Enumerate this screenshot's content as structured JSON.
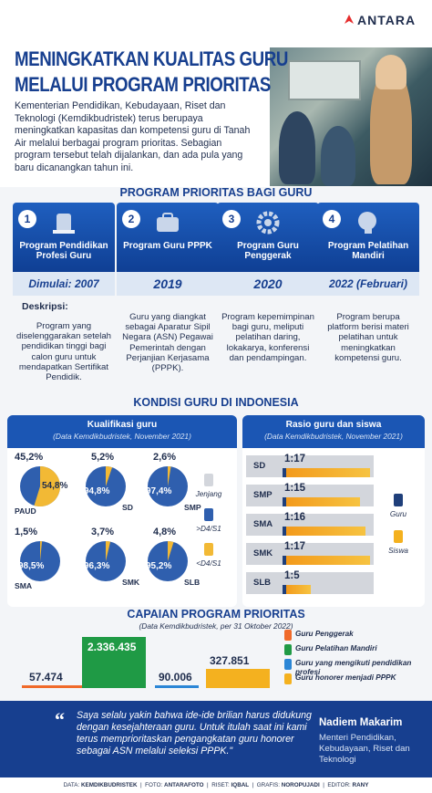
{
  "brand": {
    "logo_text": "ANTARA"
  },
  "title": {
    "line1": "MENINGKATKAN KUALITAS GURU",
    "line2": "MELALUI PROGRAM PRIORITAS"
  },
  "intro": "Kementerian Pendidikan, Kebudayaan, Riset dan Teknologi (Kemdikbudristek) terus berupaya meningkatkan kapasitas dan kompetensi guru di Tanah Air melalui berbagai program prioritas. Sebagian program tersebut telah dijalankan, dan ada pula yang baru dicanangkan tahun ini.",
  "programs_title": "PROGRAM PRIORITAS BAGI GURU",
  "desc_label": "Deskripsi:",
  "programs": [
    {
      "num": "1",
      "name": "Program Pendidikan Profesi Guru",
      "year": "Dimulai: 2007",
      "desc": "Program yang diselenggarakan setelah pendidikan tinggi bagi calon guru untuk mendapatkan Sertifikat Pendidik.",
      "icon": "education-icon"
    },
    {
      "num": "2",
      "name": "Program Guru PPPK",
      "year": "2019",
      "desc": "Guru yang diangkat sebagai Aparatur Sipil Negara (ASN) Pegawai Pemerintah dengan Perjanjian Kerjasama (PPPK).",
      "icon": "briefcase-icon"
    },
    {
      "num": "3",
      "name": "Program Guru Penggerak",
      "year": "2020",
      "desc": "Program kepemimpinan bagi guru, meliputi pelatihan daring, lokakarya, konferensi dan pendampingan.",
      "icon": "gear-icon"
    },
    {
      "num": "4",
      "name": "Program Pelatihan Mandiri",
      "year": "2022 (Februari)",
      "desc": "Program berupa platform berisi materi pelatihan untuk meningkatkan kompetensi guru.",
      "icon": "brain-icon"
    }
  ],
  "kondisi_title": "KONDISI GURU DI INDONESIA",
  "kualifikasi": {
    "title": "Kualifikasi guru",
    "source": "(Data Kemdikbudristek, November 2021)",
    "legend_title": "Jenjang",
    "legend_d4": ">D4/S1",
    "legend_lt": "<D4/S1",
    "colors": {
      "d4": "#2f5fae",
      "lt": "#f2b935"
    },
    "items": [
      {
        "level": "PAUD",
        "gt": 45.2,
        "lt": 54.8,
        "gt_label": "45,2",
        "lt_label": "54,8",
        "gt_pct": "%",
        "lt_pct": "%"
      },
      {
        "level": "SD",
        "gt": 94.8,
        "lt": 5.2,
        "gt_label": "94,8",
        "lt_label": "5,2",
        "gt_pct": "%",
        "lt_pct": "%"
      },
      {
        "level": "SMP",
        "gt": 97.4,
        "lt": 2.6,
        "gt_label": "97,4",
        "lt_label": "2,6",
        "gt_pct": "%",
        "lt_pct": "%"
      },
      {
        "level": "SMA",
        "gt": 98.5,
        "lt": 1.5,
        "gt_label": "98,5",
        "lt_label": "1,5",
        "gt_pct": "%",
        "lt_pct": "%"
      },
      {
        "level": "SMK",
        "gt": 96.3,
        "lt": 3.7,
        "gt_label": "96,3",
        "lt_label": "3,7",
        "gt_pct": "%",
        "lt_pct": "%"
      },
      {
        "level": "SLB",
        "gt": 95.2,
        "lt": 4.8,
        "gt_label": "95,2",
        "lt_label": "4,8",
        "gt_pct": "%",
        "lt_pct": "%"
      }
    ]
  },
  "rasio": {
    "title": "Rasio guru dan siswa",
    "source": "(Data Kemdikbudristek, November 2021)",
    "legend_guru": "Guru",
    "legend_siswa": "Siswa",
    "items": [
      {
        "level": "SD",
        "label": "1:17",
        "students": 17
      },
      {
        "level": "SMP",
        "label": "1:15",
        "students": 15
      },
      {
        "level": "SMA",
        "label": "1:16",
        "students": 16
      },
      {
        "level": "SMK",
        "label": "1:17",
        "students": 17
      },
      {
        "level": "SLB",
        "label": "1:5",
        "students": 5
      }
    ]
  },
  "capaian": {
    "title": "CAPAIAN PROGRAM PRIORITAS",
    "source": "(Data Kemdikbudristek, per 31 Oktober 2022)",
    "items": [
      {
        "label": "57.474",
        "value": 57474,
        "color": "#f06a2a",
        "legend": "Guru Penggerak"
      },
      {
        "label": "2.336.435",
        "value": 2336435,
        "color": "#1f9a45",
        "legend": "Guru Pelatihan Mandiri"
      },
      {
        "label": "90.006",
        "value": 90006,
        "color": "#2b86d6",
        "legend": "Guru yang mengikuti pendidikan profesi"
      },
      {
        "label": "327.851",
        "value": 327851,
        "color": "#f4b11f",
        "legend": "Guru honorer menjadi PPPK"
      }
    ]
  },
  "quote": {
    "mark": "“",
    "text": "Saya selalu yakin bahwa ide-ide brilian harus didukung dengan kesejahteraan guru. Untuk itulah saat ini kami terus memprioritaskan pengangkatan guru honorer sebagai ASN melalui seleksi PPPK.\"",
    "name": "Nadiem Makarim",
    "role": "Menteri Pendidikan, Kebudayaan, Riset dan Teknologi"
  },
  "footer": {
    "data_k": "DATA:",
    "data_v": "KEMDIKBUDRISTEK",
    "foto_k": "FOTO:",
    "foto_v": "ANTARAFOTO",
    "riset_k": "RISET:",
    "riset_v": "IQBAL",
    "grafis_k": "GRAFIS:",
    "grafis_v": "NOROPUJADI",
    "editor_k": "EDITOR:",
    "editor_v": "RANY"
  }
}
